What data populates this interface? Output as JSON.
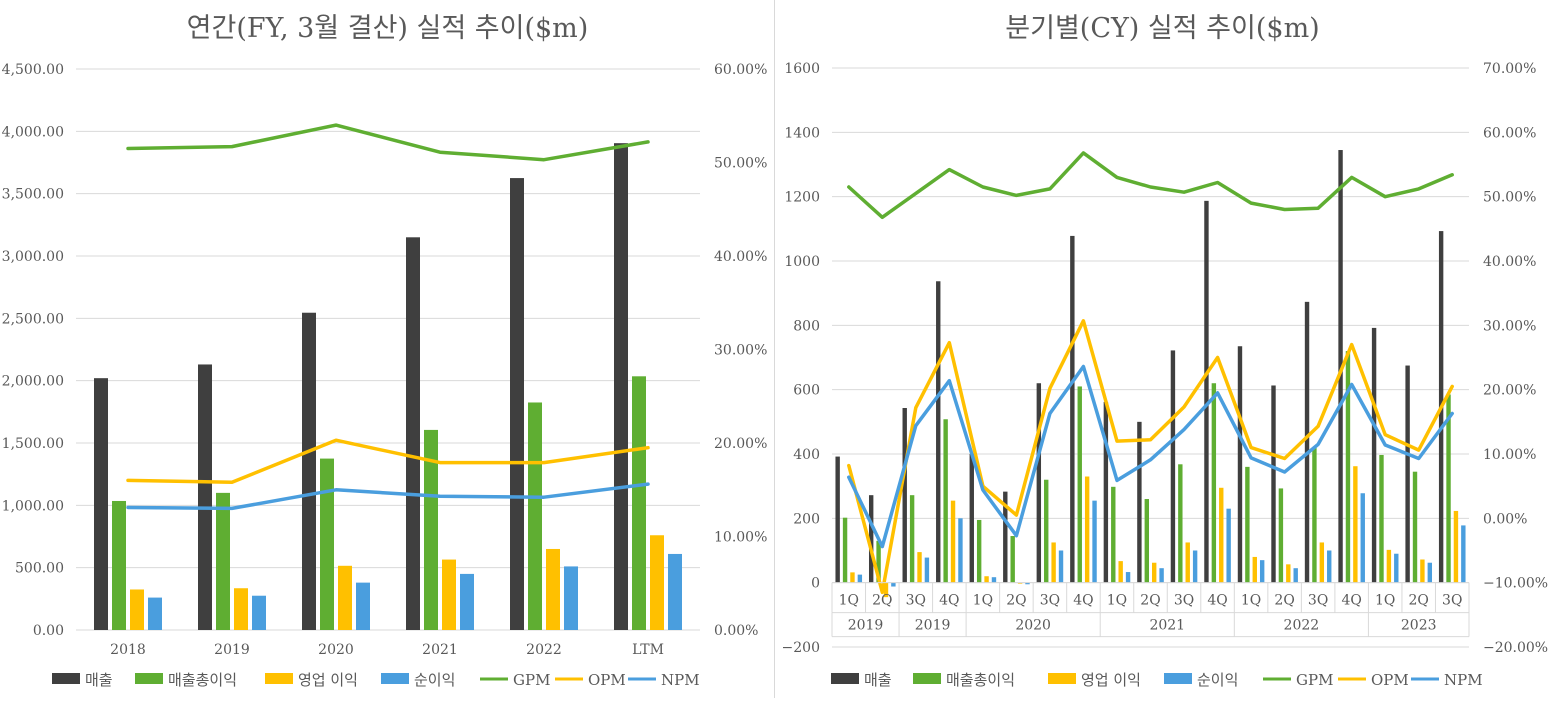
{
  "colors": {
    "revenue": "#3f3f3f",
    "gross_profit": "#5fae32",
    "operating_income": "#ffc000",
    "net_income": "#4a9ede",
    "gpm": "#5fae32",
    "opm": "#ffc000",
    "npm": "#4a9ede",
    "grid": "#d9d9d9",
    "axis_text": "#595959"
  },
  "legend": [
    "매출",
    "매출총이익",
    "영업 이익",
    "순이익",
    "GPM",
    "OPM",
    "NPM"
  ],
  "chart_data": [
    {
      "type": "bar",
      "title": "연간(FY, 3월 결산) 실적 추이($m)",
      "categories": [
        "2018",
        "2019",
        "2020",
        "2021",
        "2022",
        "LTM"
      ],
      "y_left": {
        "min": 0,
        "max": 4500,
        "step": 500,
        "ticks": [
          "0.00",
          "500.00",
          "1,000.00",
          "1,500.00",
          "2,000.00",
          "2,500.00",
          "3,000.00",
          "3,500.00",
          "4,000.00",
          "4,500.00"
        ]
      },
      "y_right": {
        "min": 0,
        "max": 60,
        "step": 10,
        "ticks": [
          "0.00%",
          "10.00%",
          "20.00%",
          "30.00%",
          "40.00%",
          "50.00%",
          "60.00%"
        ]
      },
      "series": [
        {
          "name": "매출",
          "kind": "bar",
          "axis": "left",
          "values": [
            2020,
            2130,
            2545,
            3150,
            3625,
            3905
          ]
        },
        {
          "name": "매출총이익",
          "kind": "bar",
          "axis": "left",
          "values": [
            1035,
            1100,
            1375,
            1605,
            1825,
            2035
          ]
        },
        {
          "name": "영업 이익",
          "kind": "bar",
          "axis": "left",
          "values": [
            325,
            335,
            515,
            565,
            650,
            760
          ]
        },
        {
          "name": "순이익",
          "kind": "bar",
          "axis": "left",
          "values": [
            260,
            275,
            380,
            450,
            510,
            610
          ]
        },
        {
          "name": "GPM",
          "kind": "line",
          "axis": "right",
          "values": [
            51.5,
            51.7,
            54.0,
            51.1,
            50.3,
            52.2
          ]
        },
        {
          "name": "OPM",
          "kind": "line",
          "axis": "right",
          "values": [
            16.0,
            15.8,
            20.3,
            17.9,
            17.9,
            19.5
          ]
        },
        {
          "name": "NPM",
          "kind": "line",
          "axis": "right",
          "values": [
            13.1,
            13.0,
            15.0,
            14.3,
            14.2,
            15.6
          ]
        }
      ]
    },
    {
      "type": "bar",
      "title": "분기별(CY) 실적 추이($m)",
      "categories": [
        "1Q",
        "2Q",
        "3Q",
        "4Q",
        "1Q",
        "2Q",
        "3Q",
        "4Q",
        "1Q",
        "2Q",
        "3Q",
        "4Q",
        "1Q",
        "2Q",
        "3Q",
        "4Q",
        "1Q",
        "2Q",
        "3Q"
      ],
      "groups": [
        {
          "label": "2019",
          "count": 2
        },
        {
          "label": "2019",
          "count": 2
        },
        {
          "label": "2020",
          "count": 4
        },
        {
          "label": "2021",
          "count": 4
        },
        {
          "label": "2022",
          "count": 4
        },
        {
          "label": "2023",
          "count": 3
        }
      ],
      "y_left": {
        "min": -200,
        "max": 1600,
        "step": 200,
        "ticks": [
          "−200",
          "0",
          "200",
          "400",
          "600",
          "800",
          "1000",
          "1200",
          "1400",
          "1600"
        ]
      },
      "y_right": {
        "min": -20,
        "max": 70,
        "step": 10,
        "ticks": [
          "−20.00%",
          "−10.00%",
          "0.00%",
          "10.00%",
          "20.00%",
          "30.00%",
          "40.00%",
          "50.00%",
          "60.00%",
          "70.00%"
        ]
      },
      "series": [
        {
          "name": "매출",
          "kind": "bar",
          "axis": "left",
          "values": [
            392,
            272,
            543,
            937,
            400,
            283,
            620,
            1078,
            562,
            500,
            722,
            1187,
            735,
            613,
            873,
            1345,
            792,
            675,
            1093
          ]
        },
        {
          "name": "매출총이익",
          "kind": "bar",
          "axis": "left",
          "values": [
            202,
            130,
            272,
            508,
            195,
            145,
            320,
            610,
            298,
            260,
            368,
            620,
            360,
            293,
            420,
            720,
            397,
            345,
            585
          ]
        },
        {
          "name": "영업 이익",
          "kind": "bar",
          "axis": "left",
          "values": [
            32,
            -45,
            95,
            255,
            20,
            0,
            125,
            330,
            67,
            62,
            125,
            295,
            80,
            57,
            125,
            362,
            102,
            72,
            223
          ]
        },
        {
          "name": "순이익",
          "kind": "bar",
          "axis": "left",
          "values": [
            25,
            -12,
            78,
            200,
            17,
            -5,
            100,
            255,
            33,
            45,
            100,
            230,
            70,
            45,
            100,
            278,
            90,
            62,
            178
          ]
        },
        {
          "name": "GPM",
          "kind": "line",
          "axis": "right",
          "values": [
            51.5,
            46.8,
            50.5,
            54.2,
            51.5,
            50.2,
            51.2,
            56.8,
            53.0,
            51.5,
            50.7,
            52.2,
            49.0,
            48.0,
            48.2,
            53.0,
            50.0,
            51.2,
            53.4
          ]
        },
        {
          "name": "OPM",
          "kind": "line",
          "axis": "right",
          "values": [
            8.2,
            -11.5,
            17.2,
            27.3,
            5.0,
            0.5,
            20.2,
            30.7,
            12.0,
            12.2,
            17.3,
            25.0,
            11.0,
            9.3,
            14.3,
            27.0,
            13.0,
            10.6,
            20.5
          ]
        },
        {
          "name": "NPM",
          "kind": "line",
          "axis": "right",
          "values": [
            6.4,
            -4.4,
            14.4,
            21.4,
            4.4,
            -2.7,
            16.3,
            23.6,
            5.9,
            9.1,
            13.8,
            19.5,
            9.4,
            7.2,
            11.5,
            20.8,
            11.4,
            9.3,
            16.3
          ]
        }
      ]
    }
  ]
}
